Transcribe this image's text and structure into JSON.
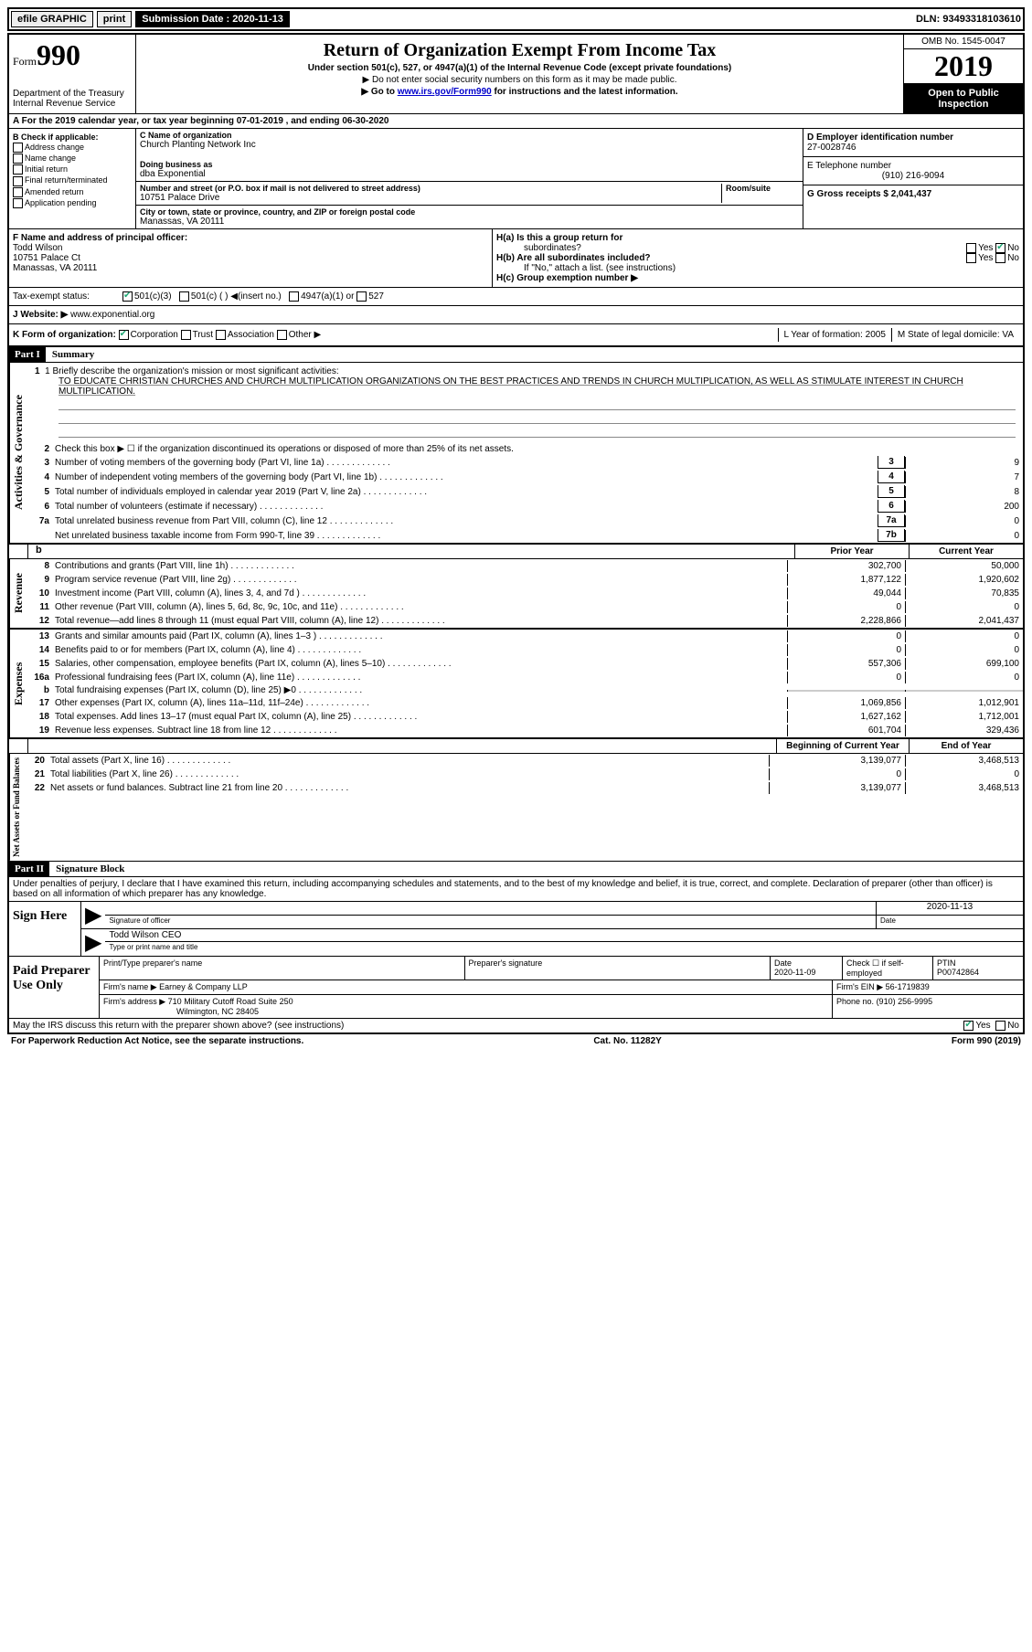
{
  "topbar": {
    "efile": "efile GRAPHIC",
    "print": "print",
    "sub_date_label": "Submission Date : 2020-11-13",
    "dln": "DLN: 93493318103610"
  },
  "header": {
    "form_word": "Form",
    "form_num": "990",
    "dept": "Department of the Treasury",
    "irs": "Internal Revenue Service",
    "title": "Return of Organization Exempt From Income Tax",
    "sub": "Under section 501(c), 527, or 4947(a)(1) of the Internal Revenue Code (except private foundations)",
    "note1": "▶ Do not enter social security numbers on this form as it may be made public.",
    "note2_pre": "▶ Go to ",
    "note2_link": "www.irs.gov/Form990",
    "note2_post": " for instructions and the latest information.",
    "omb": "OMB No. 1545-0047",
    "year": "2019",
    "open1": "Open to Public",
    "open2": "Inspection"
  },
  "row_a": "A For the 2019 calendar year, or tax year beginning 07-01-2019    , and ending 06-30-2020",
  "col_b": {
    "label": "B Check if applicable:",
    "opts": [
      "Address change",
      "Name change",
      "Initial return",
      "Final return/terminated",
      "Amended return",
      "Application pending"
    ]
  },
  "col_c": {
    "name_label": "C Name of organization",
    "name": "Church Planting Network Inc",
    "dba_label": "Doing business as",
    "dba": "dba Exponential",
    "addr_label": "Number and street (or P.O. box if mail is not delivered to street address)",
    "room_label": "Room/suite",
    "addr": "10751 Palace Drive",
    "city_label": "City or town, state or province, country, and ZIP or foreign postal code",
    "city": "Manassas, VA  20111"
  },
  "col_d": {
    "ein_label": "D Employer identification number",
    "ein": "27-0028746",
    "tel_label": "E Telephone number",
    "tel": "(910) 216-9094",
    "gross_label": "G Gross receipts $ 2,041,437"
  },
  "f": {
    "label": "F  Name and address of principal officer:",
    "name": "Todd Wilson",
    "addr1": "10751 Palace Ct",
    "addr2": "Manassas, VA  20111"
  },
  "h": {
    "a": "H(a)  Is this a group return for",
    "a2": "subordinates?",
    "yes": "Yes",
    "no": "No",
    "b": "H(b)  Are all subordinates included?",
    "b2": "If \"No,\" attach a list. (see instructions)",
    "c": "H(c)  Group exemption number ▶"
  },
  "tax_status": {
    "label": "Tax-exempt status:",
    "c3": "501(c)(3)",
    "c": "501(c) (  ) ◀(insert no.)",
    "a1": "4947(a)(1) or",
    "527": "527"
  },
  "website": {
    "label": "J   Website: ▶",
    "url": "www.exponential.org"
  },
  "k": {
    "label": "K Form of organization:",
    "corp": "Corporation",
    "trust": "Trust",
    "assoc": "Association",
    "other": "Other ▶",
    "l": "L Year of formation: 2005",
    "m": "M State of legal domicile: VA"
  },
  "part1": {
    "header": "Part I",
    "title": "Summary",
    "line1_label": "1  Briefly describe the organization's mission or most significant activities:",
    "mission": "TO EDUCATE CHRISTIAN CHURCHES AND CHURCH MULTIPLICATION ORGANIZATIONS ON THE BEST PRACTICES AND TRENDS IN CHURCH MULTIPLICATION, AS WELL AS STIMULATE INTEREST IN CHURCH MULTIPLICATION.",
    "line2": "Check this box ▶ ☐  if the organization discontinued its operations or disposed of more than 25% of its net assets.",
    "governance_label": "Activities & Governance",
    "revenue_label": "Revenue",
    "expenses_label": "Expenses",
    "netassets_label": "Net Assets or Fund Balances",
    "prior_year": "Prior Year",
    "current_year": "Current Year",
    "begin_year": "Beginning of Current Year",
    "end_year": "End of Year",
    "lines_gov": [
      {
        "n": "3",
        "d": "Number of voting members of the governing body (Part VI, line 1a)",
        "box": "3",
        "v": "9"
      },
      {
        "n": "4",
        "d": "Number of independent voting members of the governing body (Part VI, line 1b)",
        "box": "4",
        "v": "7"
      },
      {
        "n": "5",
        "d": "Total number of individuals employed in calendar year 2019 (Part V, line 2a)",
        "box": "5",
        "v": "8"
      },
      {
        "n": "6",
        "d": "Total number of volunteers (estimate if necessary)",
        "box": "6",
        "v": "200"
      },
      {
        "n": "7a",
        "d": "Total unrelated business revenue from Part VIII, column (C), line 12",
        "box": "7a",
        "v": "0"
      },
      {
        "n": "",
        "d": "Net unrelated business taxable income from Form 990-T, line 39",
        "box": "7b",
        "v": "0"
      }
    ],
    "lines_rev": [
      {
        "n": "8",
        "d": "Contributions and grants (Part VIII, line 1h)",
        "py": "302,700",
        "cy": "50,000"
      },
      {
        "n": "9",
        "d": "Program service revenue (Part VIII, line 2g)",
        "py": "1,877,122",
        "cy": "1,920,602"
      },
      {
        "n": "10",
        "d": "Investment income (Part VIII, column (A), lines 3, 4, and 7d )",
        "py": "49,044",
        "cy": "70,835"
      },
      {
        "n": "11",
        "d": "Other revenue (Part VIII, column (A), lines 5, 6d, 8c, 9c, 10c, and 11e)",
        "py": "0",
        "cy": "0"
      },
      {
        "n": "12",
        "d": "Total revenue—add lines 8 through 11 (must equal Part VIII, column (A), line 12)",
        "py": "2,228,866",
        "cy": "2,041,437"
      }
    ],
    "lines_exp": [
      {
        "n": "13",
        "d": "Grants and similar amounts paid (Part IX, column (A), lines 1–3 )",
        "py": "0",
        "cy": "0"
      },
      {
        "n": "14",
        "d": "Benefits paid to or for members (Part IX, column (A), line 4)",
        "py": "0",
        "cy": "0"
      },
      {
        "n": "15",
        "d": "Salaries, other compensation, employee benefits (Part IX, column (A), lines 5–10)",
        "py": "557,306",
        "cy": "699,100"
      },
      {
        "n": "16a",
        "d": "Professional fundraising fees (Part IX, column (A), line 11e)",
        "py": "0",
        "cy": "0"
      },
      {
        "n": "b",
        "d": "Total fundraising expenses (Part IX, column (D), line 25) ▶0",
        "py": "",
        "cy": "",
        "shaded": true
      },
      {
        "n": "17",
        "d": "Other expenses (Part IX, column (A), lines 11a–11d, 11f–24e)",
        "py": "1,069,856",
        "cy": "1,012,901"
      },
      {
        "n": "18",
        "d": "Total expenses. Add lines 13–17 (must equal Part IX, column (A), line 25)",
        "py": "1,627,162",
        "cy": "1,712,001"
      },
      {
        "n": "19",
        "d": "Revenue less expenses. Subtract line 18 from line 12",
        "py": "601,704",
        "cy": "329,436"
      }
    ],
    "lines_net": [
      {
        "n": "20",
        "d": "Total assets (Part X, line 16)",
        "py": "3,139,077",
        "cy": "3,468,513"
      },
      {
        "n": "21",
        "d": "Total liabilities (Part X, line 26)",
        "py": "0",
        "cy": "0"
      },
      {
        "n": "22",
        "d": "Net assets or fund balances. Subtract line 21 from line 20",
        "py": "3,139,077",
        "cy": "3,468,513"
      }
    ]
  },
  "part2": {
    "header": "Part II",
    "title": "Signature Block",
    "penalty": "Under penalties of perjury, I declare that I have examined this return, including accompanying schedules and statements, and to the best of my knowledge and belief, it is true, correct, and complete. Declaration of preparer (other than officer) is based on all information of which preparer has any knowledge.",
    "sign_here": "Sign Here",
    "sig_officer": "Signature of officer",
    "date": "Date",
    "sig_date": "2020-11-13",
    "officer_name": "Todd Wilson CEO",
    "type_name": "Type or print name and title",
    "paid": "Paid Preparer Use Only",
    "prep_name_label": "Print/Type preparer's name",
    "prep_sig_label": "Preparer's signature",
    "prep_date_label": "Date",
    "prep_date": "2020-11-09",
    "check_se": "Check ☐ if self-employed",
    "ptin_label": "PTIN",
    "ptin": "P00742864",
    "firm_name_label": "Firm's name    ▶",
    "firm_name": "Earney & Company LLP",
    "firm_ein_label": "Firm's EIN ▶",
    "firm_ein": "56-1719839",
    "firm_addr_label": "Firm's address ▶",
    "firm_addr1": "710 Military Cutoff Road Suite 250",
    "firm_addr2": "Wilmington, NC  28405",
    "phone_label": "Phone no.",
    "phone": "(910) 256-9995",
    "discuss": "May the IRS discuss this return with the preparer shown above? (see instructions)",
    "yes": "Yes",
    "no": "No"
  },
  "footer": {
    "paperwork": "For Paperwork Reduction Act Notice, see the separate instructions.",
    "cat": "Cat. No. 11282Y",
    "form": "Form 990 (2019)"
  }
}
